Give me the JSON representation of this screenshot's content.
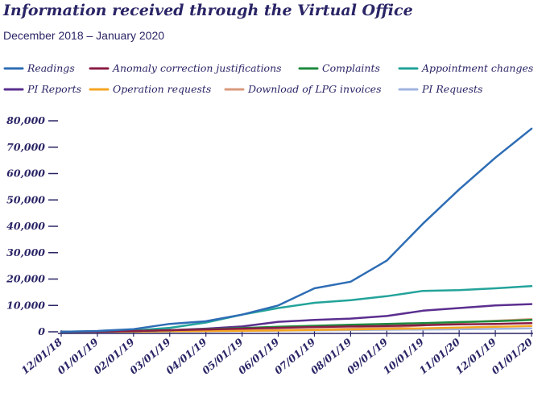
{
  "chart_data": {
    "type": "line",
    "title": "Information received through the Virtual Office",
    "subtitle": "December 2018 – January 2020",
    "x": [
      "12/01/18",
      "01/01/19",
      "02/01/19",
      "03/01/19",
      "04/01/19",
      "05/01/19",
      "06/01/19",
      "07/01/19",
      "08/01/19",
      "09/01/19",
      "10/01/19",
      "11/01/20",
      "12/01/19",
      "01/01/20"
    ],
    "ylim": [
      0,
      80000
    ],
    "yticks": [
      0,
      10000,
      20000,
      30000,
      40000,
      50000,
      60000,
      70000,
      80000
    ],
    "ytick_labels": [
      "0",
      "10,000",
      "20,000",
      "30,000",
      "40,000",
      "50,000",
      "60,000",
      "70,000",
      "80,000"
    ],
    "legend_position": "top",
    "grid": false,
    "series": [
      {
        "name": "Readings",
        "color": "#2e6db5",
        "values": [
          0,
          300,
          1000,
          3000,
          4000,
          6500,
          10000,
          16500,
          19000,
          27000,
          41000,
          54000,
          66000,
          77000
        ]
      },
      {
        "name": "Anomaly correction justifications",
        "color": "#8a1d44",
        "values": [
          0,
          100,
          300,
          600,
          900,
          1200,
          1500,
          1800,
          2000,
          2200,
          2500,
          2800,
          3000,
          3300
        ]
      },
      {
        "name": "Complaints",
        "color": "#1e8a3e",
        "values": [
          0,
          100,
          300,
          600,
          1000,
          1400,
          1900,
          2300,
          2700,
          3000,
          3300,
          3700,
          4000,
          4500
        ]
      },
      {
        "name": "Appointment changes",
        "color": "#23a39a",
        "values": [
          0,
          200,
          500,
          1500,
          3500,
          6500,
          9000,
          11000,
          12000,
          13500,
          15500,
          15800,
          16500,
          17300
        ]
      },
      {
        "name": "PI Reports",
        "color": "#5b2f8f",
        "values": [
          0,
          100,
          300,
          600,
          1200,
          2000,
          3800,
          4500,
          5000,
          6000,
          8000,
          9000,
          10000,
          10500
        ]
      },
      {
        "name": "Operation requests",
        "color": "#f5a623",
        "values": [
          0,
          50,
          100,
          200,
          300,
          400,
          500,
          700,
          900,
          1100,
          1300,
          1600,
          1900,
          2200
        ]
      },
      {
        "name": "Download of LPG invoices",
        "color": "#d99a7e",
        "values": [
          0,
          50,
          100,
          200,
          300,
          500,
          700,
          900,
          1200,
          1600,
          2400,
          3500,
          4200,
          4800
        ]
      },
      {
        "name": "PI Requests",
        "color": "#9fb4e0",
        "values": [
          0,
          50,
          100,
          150,
          250,
          350,
          450,
          550,
          650,
          750,
          850,
          950,
          1100,
          1300
        ]
      }
    ]
  }
}
